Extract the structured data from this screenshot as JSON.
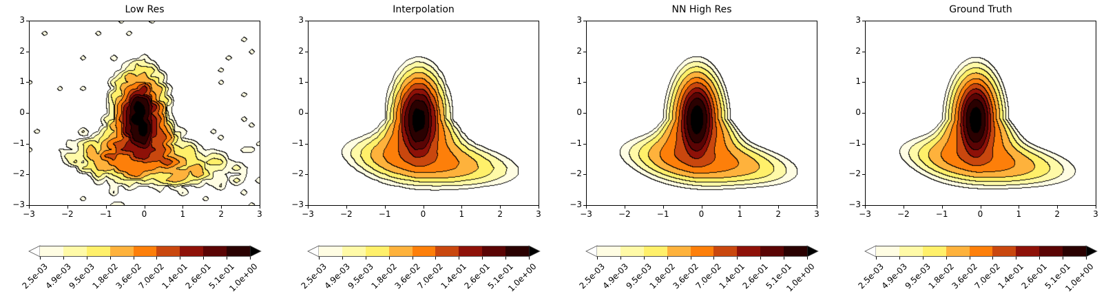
{
  "chart_data": [
    {
      "type": "contourf",
      "title": "Low Res",
      "variant": "low_res"
    },
    {
      "type": "contourf",
      "title": "Interpolation",
      "variant": "interpolation"
    },
    {
      "type": "contourf",
      "title": "NN High Res",
      "variant": "nn_high_res"
    },
    {
      "type": "contourf",
      "title": "Ground Truth",
      "variant": "ground_truth"
    }
  ],
  "shared": {
    "xlim": [
      -3,
      3
    ],
    "ylim": [
      -3,
      3
    ],
    "xticks": [
      "−3",
      "−2",
      "−1",
      "0",
      "1",
      "2",
      "3"
    ],
    "yticks": [
      "3",
      "2",
      "1",
      "0",
      "−1",
      "−2",
      "−3"
    ],
    "levels": [
      0.0025,
      0.0049,
      0.0095,
      0.018,
      0.036,
      0.07,
      0.14,
      0.26,
      0.51,
      1.0
    ],
    "colorbar_labels": [
      "2.5e-03",
      "4.9e-03",
      "9.5e-03",
      "1.8e-02",
      "3.6e-02",
      "7.0e-02",
      "1.4e-01",
      "2.6e-01",
      "5.1e-01",
      "1.0e+00"
    ],
    "colorbar_extend": "both",
    "colorbar_placement": "bottom",
    "band_colors": [
      "#fffde3",
      "#fffaa7",
      "#fff06a",
      "#feb23c",
      "#fd7f0a",
      "#c9470e",
      "#8e1108",
      "#5a0404",
      "#2a0101"
    ],
    "under_color": "#ffffff",
    "over_color": "#000000",
    "contour_line_color": "#000000",
    "grid": false
  }
}
